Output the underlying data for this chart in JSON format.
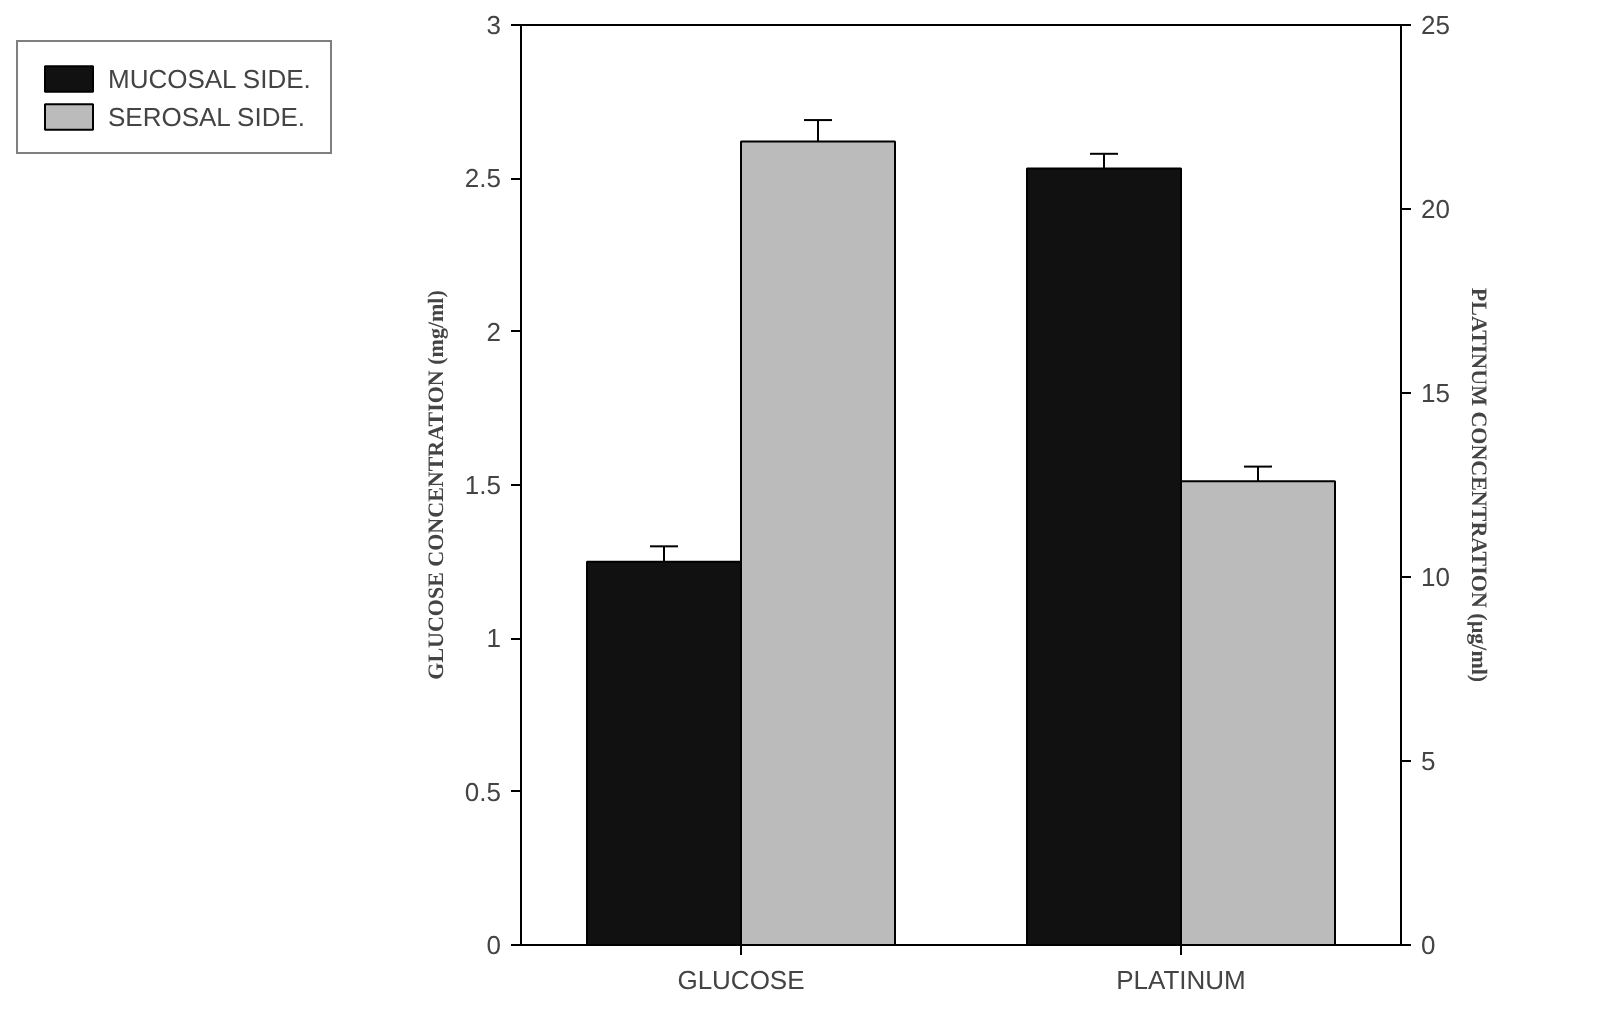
{
  "chart_data": {
    "type": "bar",
    "categories": [
      "GLUCOSE",
      "PLATINUM"
    ],
    "ylabel": "GLUCOSE CONCENTRATION (mg/ml)",
    "y2label": "PLATINUM CONCENTRATION (µg/ml)",
    "ylim": [
      0,
      3
    ],
    "yticks": [
      0,
      0.5,
      1,
      1.5,
      2,
      2.5,
      3
    ],
    "y2lim": [
      0,
      25
    ],
    "y2ticks": [
      0,
      5,
      10,
      15,
      20,
      25
    ],
    "series": [
      {
        "name": "MUCOSAL SIDE.",
        "color": "#111111",
        "values": [
          1.25,
          null
        ],
        "errors": [
          0.05,
          null
        ]
      },
      {
        "name": "SEROSAL SIDE.",
        "color": "#bbbbbb",
        "values": [
          2.62,
          null
        ],
        "errors": [
          0.07,
          null
        ]
      },
      {
        "color": "#111111",
        "values": [
          null,
          21.1
        ],
        "errors": [
          null,
          0.4
        ],
        "axis": "y2"
      },
      {
        "color": "#bbbbbb",
        "values": [
          null,
          12.6
        ],
        "errors": [
          null,
          0.4
        ],
        "axis": "y2"
      }
    ],
    "legend": "top left",
    "grid": false
  }
}
